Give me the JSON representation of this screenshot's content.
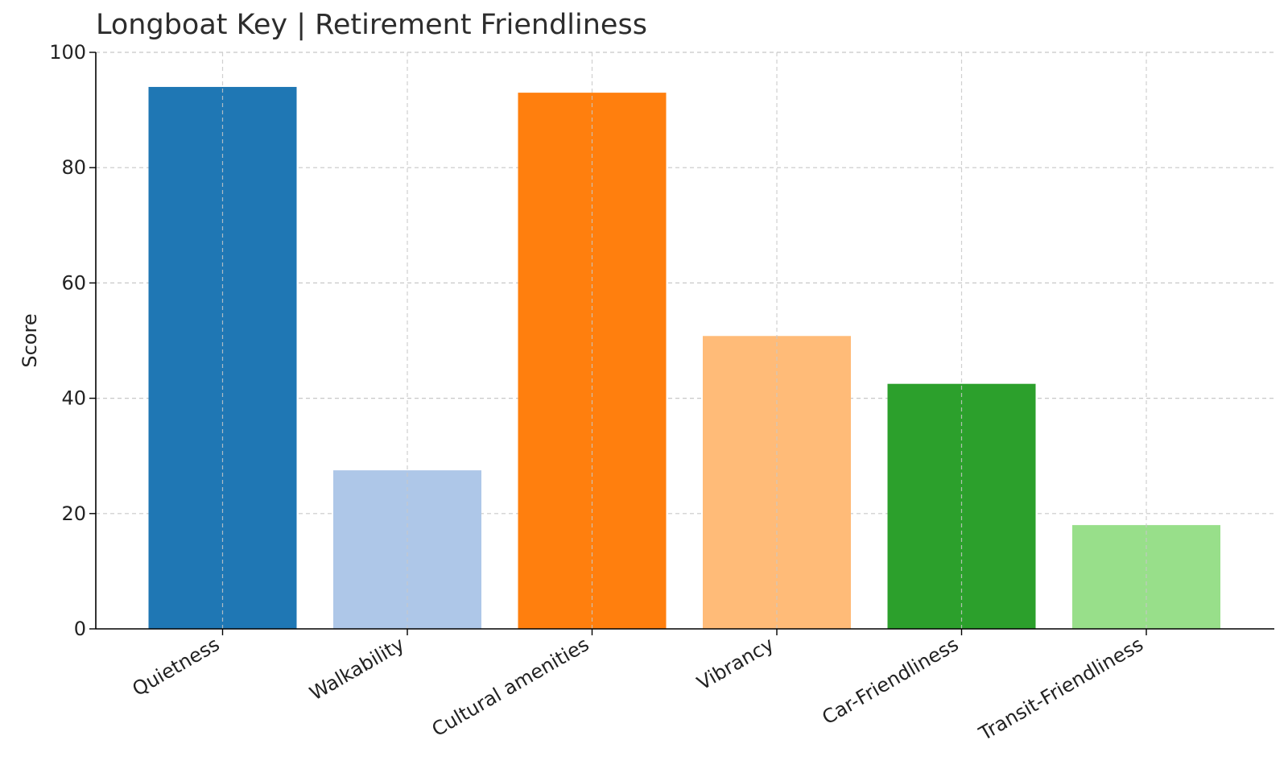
{
  "chart_data": {
    "type": "bar",
    "title": "Longboat Key | Retirement Friendliness",
    "xlabel": "",
    "ylabel": "Score",
    "ylim": [
      0,
      100
    ],
    "yticks": [
      0,
      20,
      40,
      60,
      80,
      100
    ],
    "grid": true,
    "categories": [
      "Quietness",
      "Walkability",
      "Cultural amenities",
      "Vibrancy",
      "Car-Friendliness",
      "Transit-Friendliness"
    ],
    "values": [
      94,
      27.5,
      93,
      50.8,
      42.5,
      18
    ],
    "colors": [
      "#1f77b4",
      "#aec7e8",
      "#ff7f0e",
      "#ffbb78",
      "#2ca02c",
      "#98df8a"
    ]
  }
}
